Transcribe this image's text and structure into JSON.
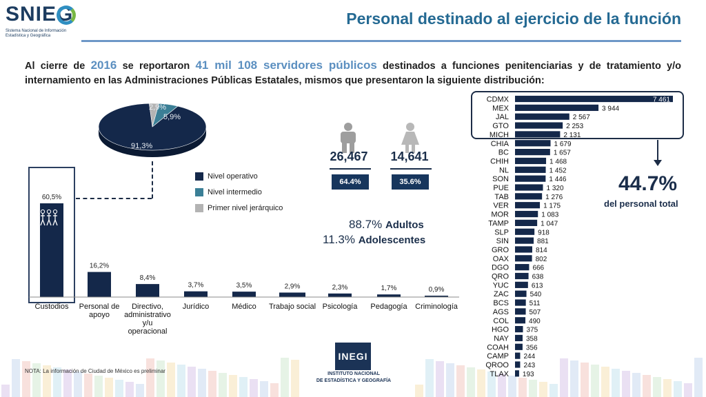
{
  "header": {
    "logo_text": "SNIEG",
    "logo_subtitle": "Sistema Nacional de Información Estadística y Geográfica",
    "title": "Personal destinado al ejercicio de la función"
  },
  "intro": {
    "part1": "Al cierre de ",
    "year": "2016",
    "part2": " se reportaron ",
    "highlight": "41 mil 108 servidores públicos",
    "part3": " destinados a funciones penitenciarias y de tratamiento y/o internamiento en las Administraciones Públicas Estatales, mismos que presentaron la siguiente distribución:"
  },
  "colors": {
    "navy": "#14284a",
    "teal": "#3b7f96",
    "gray": "#b3b3b3",
    "accent": "#5b8fc0",
    "person_male": "#9e9e9e",
    "person_female": "#b8b8b8"
  },
  "legend": [
    {
      "label": "Nivel operativo",
      "color": "#14284a"
    },
    {
      "label": "Nivel intermedio",
      "color": "#3b7f96"
    },
    {
      "label": "Primer nivel jerárquico",
      "color": "#b3b3b3"
    }
  ],
  "gender": {
    "male": {
      "value": "26,467",
      "pct": "64.4%",
      "icon": "male-person-icon"
    },
    "female": {
      "value": "14,641",
      "pct": "35.6%",
      "icon": "female-person-icon"
    }
  },
  "age": {
    "adults_pct": "88.7%",
    "adults_label": "Adultos",
    "teens_pct": "11.3%",
    "teens_label": "Adolescentes"
  },
  "top_states": {
    "pct": "44.7%",
    "label": "del personal total"
  },
  "note": "NOTA: La información de Ciudad de México es preliminar",
  "inegi": {
    "mark": "INEGI",
    "line1": "INSTITUTO NACIONAL",
    "line2": "DE ESTADÍSTICA Y GEOGRAFÍA"
  },
  "chart_data": [
    {
      "type": "pie",
      "title": "",
      "labels": [
        "Nivel operativo",
        "Nivel intermedio",
        "Primer nivel jerárquico"
      ],
      "values": [
        91.3,
        5.9,
        2.9
      ],
      "value_labels": [
        "91,3%",
        "5,9%",
        "2,9%"
      ]
    },
    {
      "type": "bar",
      "title": "",
      "categories": [
        "Custodios",
        "Personal de apoyo",
        "Directivo, administrativo y/u operacional",
        "Jurídico",
        "Médico",
        "Trabajo social",
        "Psicología",
        "Pedagogía",
        "Criminología"
      ],
      "category_lines": [
        [
          "Custodios"
        ],
        [
          "Personal de",
          "apoyo"
        ],
        [
          "Directivo,",
          "administrativo",
          "y/u",
          "operacional"
        ],
        [
          "Jurídico"
        ],
        [
          "Médico"
        ],
        [
          "Trabajo social"
        ],
        [
          "Psicología"
        ],
        [
          "Pedagogía"
        ],
        [
          "Criminología"
        ]
      ],
      "values": [
        60.5,
        16.2,
        8.4,
        3.7,
        3.5,
        2.9,
        2.3,
        1.7,
        0.9
      ],
      "value_labels": [
        "60,5%",
        "16,2%",
        "8,4%",
        "3,7%",
        "3,5%",
        "2,9%",
        "2,3%",
        "1,7%",
        "0,9%"
      ],
      "ylim": [
        0,
        65
      ]
    },
    {
      "type": "bar",
      "orientation": "horizontal",
      "title": "",
      "categories": [
        "CDMX",
        "MEX",
        "JAL",
        "GTO",
        "MICH",
        "CHIA",
        "BC",
        "CHIH",
        "NL",
        "SON",
        "PUE",
        "TAB",
        "VER",
        "MOR",
        "TAMP",
        "SLP",
        "SIN",
        "GRO",
        "OAX",
        "DGO",
        "QRO",
        "YUC",
        "ZAC",
        "BCS",
        "AGS",
        "COL",
        "HGO",
        "NAY",
        "COAH",
        "CAMP",
        "QROO",
        "TLAX"
      ],
      "values": [
        7461,
        3944,
        2567,
        2253,
        2131,
        1679,
        1657,
        1468,
        1452,
        1446,
        1320,
        1276,
        1175,
        1083,
        1047,
        918,
        881,
        814,
        802,
        666,
        638,
        613,
        540,
        511,
        507,
        490,
        375,
        358,
        356,
        244,
        243,
        193
      ],
      "value_labels": [
        "7 461",
        "3 944",
        "2 567",
        "2 253",
        "2 131",
        "1 679",
        "1 657",
        "1 468",
        "1 452",
        "1 446",
        "1 320",
        "1 276",
        "1 175",
        "1 083",
        "1 047",
        "918",
        "881",
        "814",
        "802",
        "666",
        "638",
        "613",
        "540",
        "511",
        "507",
        "490",
        "375",
        "358",
        "356",
        "244",
        "243",
        "193"
      ],
      "xlim": [
        0,
        7461
      ]
    }
  ]
}
